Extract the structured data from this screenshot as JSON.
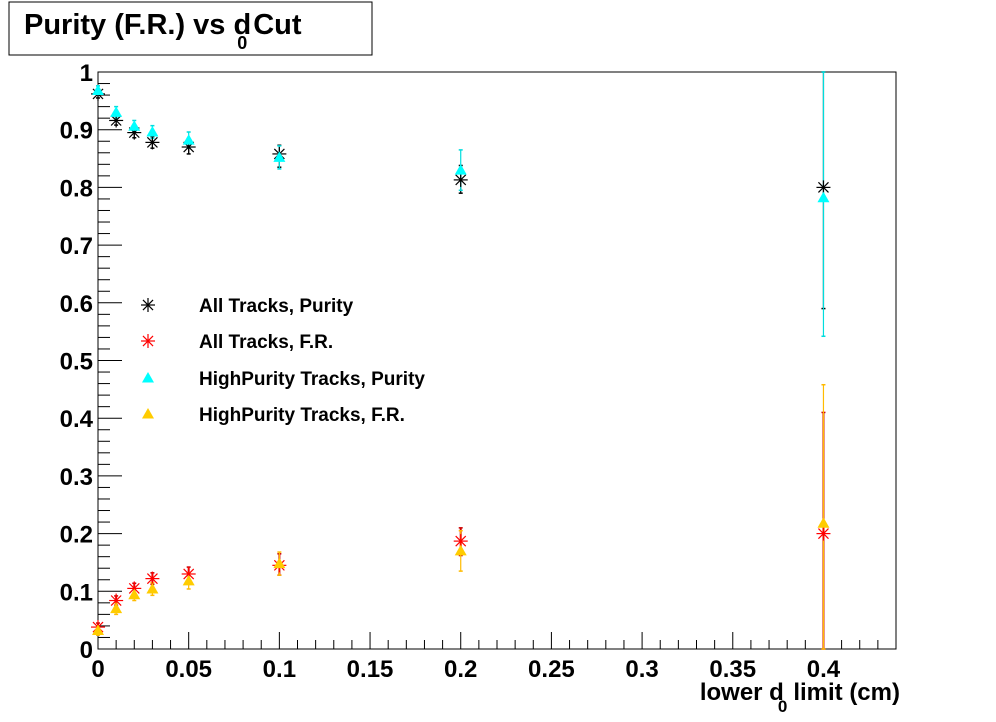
{
  "chart_data": {
    "type": "scatter",
    "title": {
      "main": "Purity (F.R.) vs d",
      "sub": "0",
      "suffix": "Cut"
    },
    "xlabel": {
      "main": "lower d",
      "sub": "0",
      "suffix": "limit (cm)"
    },
    "ylabel": "",
    "xlim": [
      0,
      0.44
    ],
    "ylim": [
      0,
      1
    ],
    "x_ticks": [
      0,
      0.05,
      0.1,
      0.15,
      0.2,
      0.25,
      0.3,
      0.35,
      0.4
    ],
    "x_tick_labels": [
      "0",
      "0.05",
      "0.1",
      "0.15",
      "0.2",
      "0.25",
      "0.3",
      "0.35",
      "0.4"
    ],
    "y_ticks": [
      0,
      0.1,
      0.2,
      0.3,
      0.4,
      0.5,
      0.6,
      0.7,
      0.8,
      0.9,
      1
    ],
    "y_tick_labels": [
      "0",
      "0.1",
      "0.2",
      "0.3",
      "0.4",
      "0.5",
      "0.6",
      "0.7",
      "0.8",
      "0.9",
      "1"
    ],
    "grid": false,
    "legend_position": "middle-left",
    "series": [
      {
        "name": "All Tracks, Purity",
        "marker": "star",
        "color": "#000000",
        "bar_color": "#000000",
        "points": [
          {
            "x": 0,
            "y": 0.962,
            "lo": 0.955,
            "hi": 0.969
          },
          {
            "x": 0.01,
            "y": 0.916,
            "lo": 0.908,
            "hi": 0.924
          },
          {
            "x": 0.02,
            "y": 0.895,
            "lo": 0.886,
            "hi": 0.904
          },
          {
            "x": 0.03,
            "y": 0.878,
            "lo": 0.868,
            "hi": 0.888
          },
          {
            "x": 0.05,
            "y": 0.87,
            "lo": 0.858,
            "hi": 0.882
          },
          {
            "x": 0.1,
            "y": 0.858,
            "lo": 0.835,
            "hi": 0.873
          },
          {
            "x": 0.2,
            "y": 0.813,
            "lo": 0.79,
            "hi": 0.838
          },
          {
            "x": 0.4,
            "y": 0.8,
            "lo": 0.59,
            "hi": 1.0
          }
        ]
      },
      {
        "name": "All Tracks, F.R.",
        "marker": "star",
        "color": "#ff0000",
        "bar_color": "#cc0000",
        "points": [
          {
            "x": 0,
            "y": 0.038,
            "lo": 0.031,
            "hi": 0.045
          },
          {
            "x": 0.01,
            "y": 0.084,
            "lo": 0.076,
            "hi": 0.092
          },
          {
            "x": 0.02,
            "y": 0.105,
            "lo": 0.096,
            "hi": 0.114
          },
          {
            "x": 0.03,
            "y": 0.122,
            "lo": 0.112,
            "hi": 0.132
          },
          {
            "x": 0.05,
            "y": 0.13,
            "lo": 0.118,
            "hi": 0.142
          },
          {
            "x": 0.1,
            "y": 0.145,
            "lo": 0.128,
            "hi": 0.165
          },
          {
            "x": 0.2,
            "y": 0.187,
            "lo": 0.162,
            "hi": 0.21
          },
          {
            "x": 0.4,
            "y": 0.2,
            "lo": 0.0,
            "hi": 0.41
          }
        ]
      },
      {
        "name": "HighPurity Tracks, Purity",
        "marker": "triangle",
        "color": "#00ffff",
        "bar_color": "#00dddd",
        "points": [
          {
            "x": 0,
            "y": 0.968,
            "lo": 0.96,
            "hi": 0.976
          },
          {
            "x": 0.01,
            "y": 0.93,
            "lo": 0.92,
            "hi": 0.94
          },
          {
            "x": 0.02,
            "y": 0.906,
            "lo": 0.896,
            "hi": 0.916
          },
          {
            "x": 0.03,
            "y": 0.896,
            "lo": 0.885,
            "hi": 0.907
          },
          {
            "x": 0.05,
            "y": 0.882,
            "lo": 0.868,
            "hi": 0.896
          },
          {
            "x": 0.1,
            "y": 0.852,
            "lo": 0.832,
            "hi": 0.872
          },
          {
            "x": 0.2,
            "y": 0.83,
            "lo": 0.795,
            "hi": 0.865
          },
          {
            "x": 0.4,
            "y": 0.782,
            "lo": 0.542,
            "hi": 1.0
          }
        ]
      },
      {
        "name": "HighPurity Tracks, F.R.",
        "marker": "triangle",
        "color": "#ffcc00",
        "bar_color": "#ffbb00",
        "points": [
          {
            "x": 0,
            "y": 0.032,
            "lo": 0.024,
            "hi": 0.04
          },
          {
            "x": 0.01,
            "y": 0.07,
            "lo": 0.06,
            "hi": 0.08
          },
          {
            "x": 0.02,
            "y": 0.094,
            "lo": 0.084,
            "hi": 0.104
          },
          {
            "x": 0.03,
            "y": 0.104,
            "lo": 0.093,
            "hi": 0.115
          },
          {
            "x": 0.05,
            "y": 0.118,
            "lo": 0.104,
            "hi": 0.132
          },
          {
            "x": 0.1,
            "y": 0.148,
            "lo": 0.128,
            "hi": 0.168
          },
          {
            "x": 0.2,
            "y": 0.17,
            "lo": 0.135,
            "hi": 0.205
          },
          {
            "x": 0.4,
            "y": 0.218,
            "lo": 0.0,
            "hi": 0.458
          }
        ]
      }
    ]
  }
}
